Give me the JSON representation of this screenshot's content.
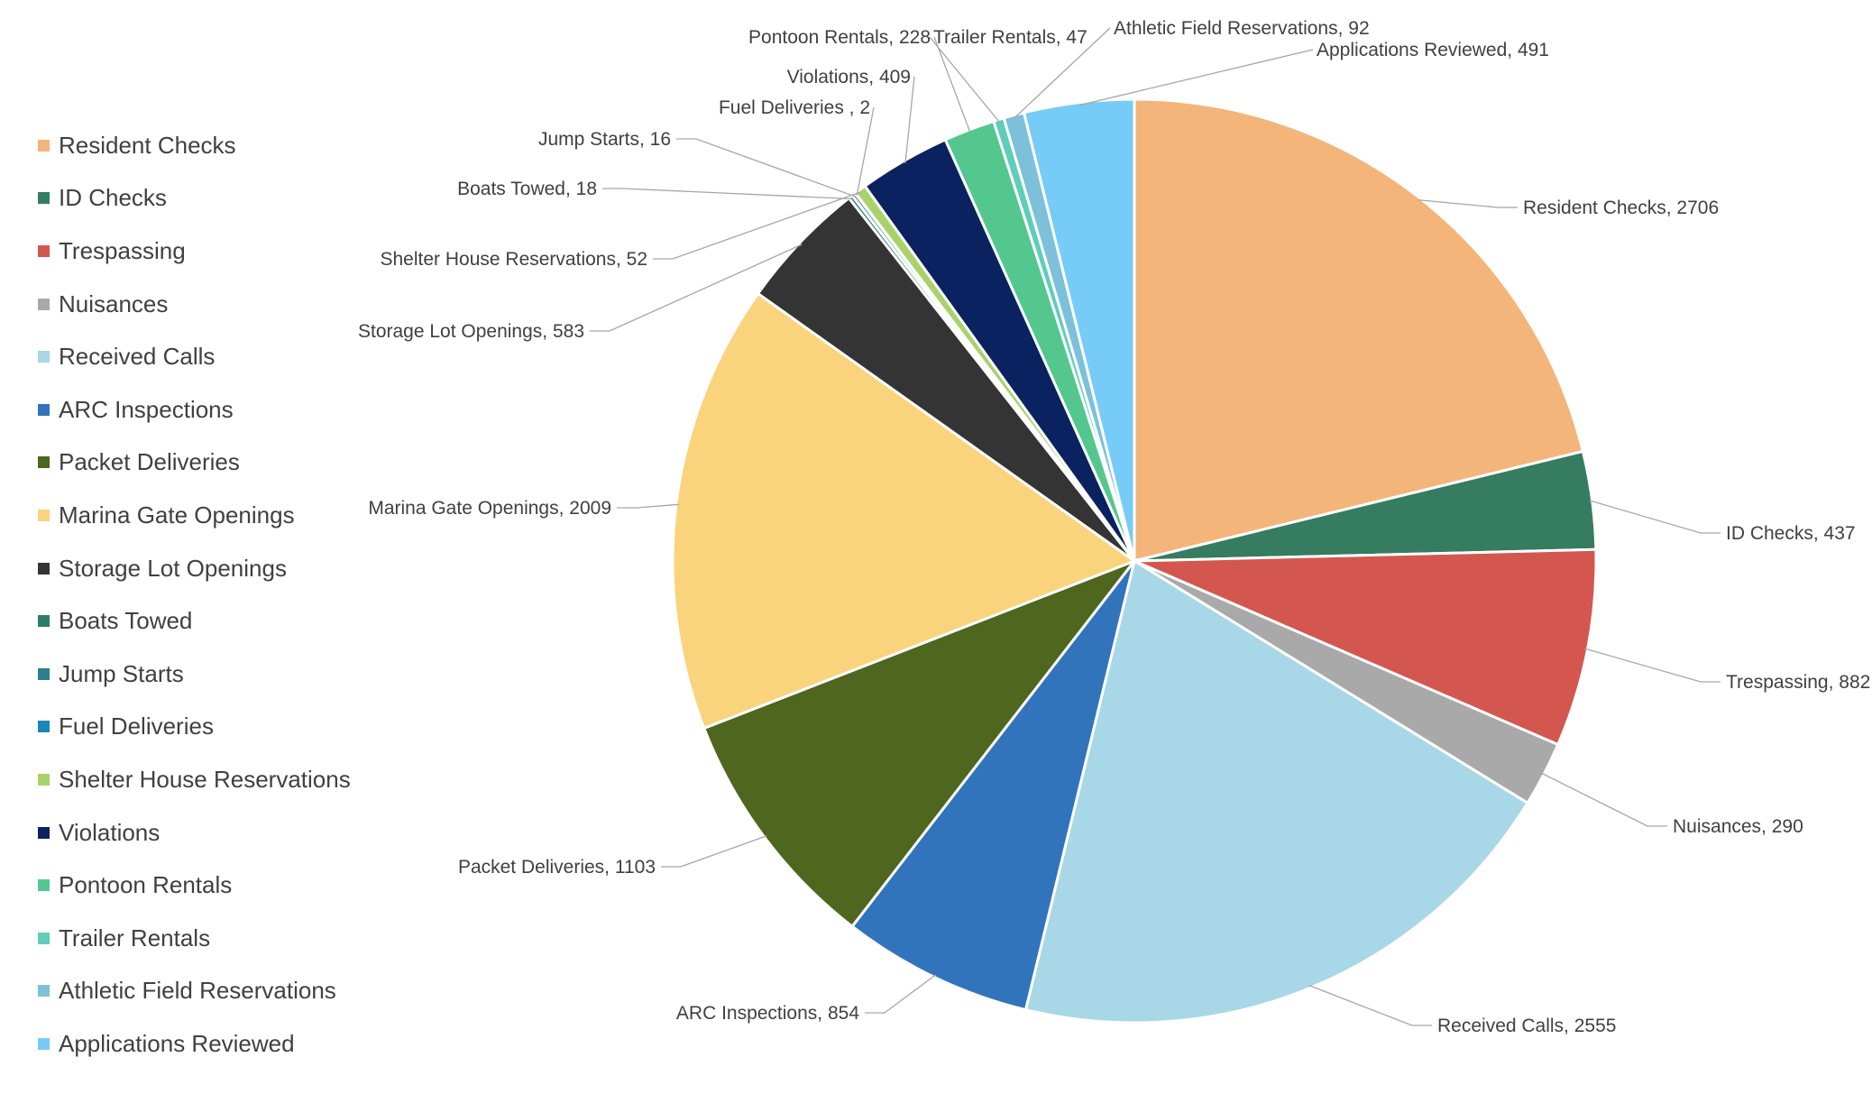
{
  "chart_data": {
    "type": "pie",
    "title": "",
    "legend_position": "left",
    "slices": [
      {
        "label": "Resident Checks",
        "value": 2706,
        "display": "Resident Checks, 2706",
        "color": "#F4B57A"
      },
      {
        "label": "ID Checks",
        "value": 437,
        "display": "ID Checks, 437",
        "color": "#357C61"
      },
      {
        "label": "Trespassing",
        "value": 882,
        "display": "Trespassing, 882",
        "color": "#D4574F"
      },
      {
        "label": "Nuisances",
        "value": 290,
        "display": "Nuisances, 290",
        "color": "#A9A9A9"
      },
      {
        "label": "Received Calls",
        "value": 2555,
        "display": "Received Calls, 2555",
        "color": "#A8D7E7"
      },
      {
        "label": "ARC Inspections",
        "value": 854,
        "display": "ARC Inspections, 854",
        "color": "#3174BC"
      },
      {
        "label": "Packet Deliveries",
        "value": 1103,
        "display": "Packet Deliveries, 1103",
        "color": "#4E661D"
      },
      {
        "label": "Marina Gate Openings",
        "value": 2009,
        "display": "Marina Gate Openings, 2009",
        "color": "#FAD37D"
      },
      {
        "label": "Storage Lot Openings",
        "value": 583,
        "display": "Storage Lot Openings, 583",
        "color": "#343434"
      },
      {
        "label": "Boats Towed",
        "value": 18,
        "display": "Boats Towed, 18",
        "color": "#2D7D6B"
      },
      {
        "label": "Jump Starts",
        "value": 16,
        "display": "Jump Starts, 16",
        "color": "#2F7E8C"
      },
      {
        "label": "Fuel Deliveries",
        "value": 2,
        "display": "Fuel Deliveries , 2",
        "color": "#1988B8"
      },
      {
        "label": "Shelter House Reservations",
        "value": 52,
        "display": "Shelter House Reservations, 52",
        "color": "#A8D36A"
      },
      {
        "label": "Violations",
        "value": 409,
        "display": "Violations, 409",
        "color": "#0A2260"
      },
      {
        "label": "Pontoon Rentals",
        "value": 228,
        "display": "Pontoon Rentals, 228",
        "color": "#54C78E"
      },
      {
        "label": "Trailer Rentals",
        "value": 47,
        "display": "Trailer Rentals, 47",
        "color": "#5FCDB9"
      },
      {
        "label": "Athletic Field Reservations",
        "value": 92,
        "display": "Athletic Field Reservations, 92",
        "color": "#7DC0DA"
      },
      {
        "label": "Applications Reviewed",
        "value": 491,
        "display": "Applications Reviewed, 491",
        "color": "#76CCF6"
      }
    ]
  }
}
